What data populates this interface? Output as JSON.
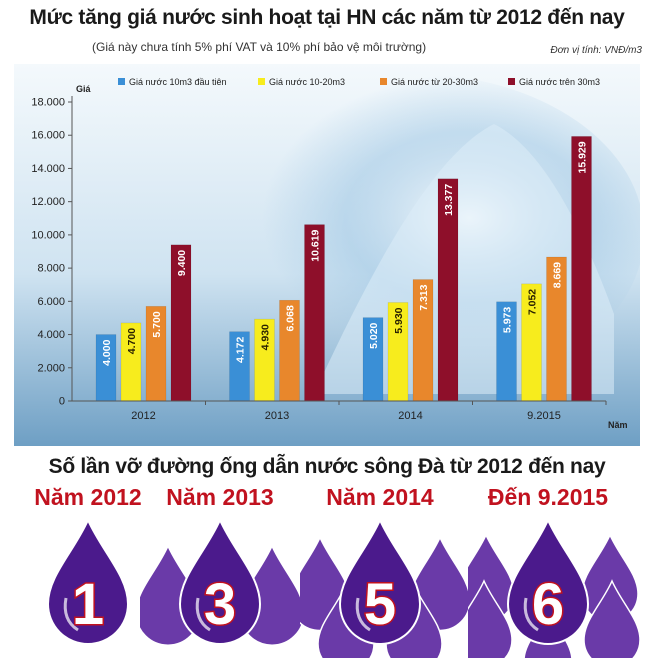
{
  "title": "Mức tăng giá nước sinh hoạt tại HN các năm từ 2012 đến nay",
  "subtitle": "(Giá này chưa tính 5% phí VAT và 10% phí bảo vệ môi trường)",
  "unit_note": "Đơn vị tính: VNĐ/m3",
  "chart_data": {
    "type": "bar",
    "ylabel": "Giá",
    "xlabel": "Năm",
    "ylim": [
      0,
      18000
    ],
    "yticks": [
      "0",
      "2.000",
      "4.000",
      "6.000",
      "8.000",
      "10.000",
      "12.000",
      "14.000",
      "16.000",
      "18.000"
    ],
    "categories": [
      "2012",
      "2013",
      "2014",
      "9.2015"
    ],
    "legend_position": "top",
    "series": [
      {
        "name": "Giá nước 10m3 đầu tiên",
        "color": "#3a8fd6",
        "values": [
          4000,
          4172,
          5020,
          5973
        ],
        "labels": [
          "4.000",
          "4.172",
          "5.020",
          "5.973"
        ]
      },
      {
        "name": "Giá nước 10-20m3",
        "color": "#f7ec1d",
        "values": [
          4700,
          4930,
          5930,
          7052
        ],
        "labels": [
          "4.700",
          "4.930",
          "5.930",
          "7.052"
        ]
      },
      {
        "name": "Giá nước từ 20-30m3",
        "color": "#e8872c",
        "values": [
          5700,
          6068,
          7313,
          8669
        ],
        "labels": [
          "5.700",
          "6.068",
          "7.313",
          "8.669"
        ]
      },
      {
        "name": "Giá nước trên 30m3",
        "color": "#8e0f2a",
        "values": [
          9400,
          10619,
          13377,
          15929
        ],
        "labels": [
          "9.400",
          "10.619",
          "13.377",
          "15.929"
        ]
      }
    ]
  },
  "breaks_title": "Số lần vỡ đường ống dẫn nước sông Đà từ 2012 đến nay",
  "breaks": [
    {
      "label": "Năm 2012",
      "count": "1"
    },
    {
      "label": "Năm 2013",
      "count": "3"
    },
    {
      "label": "Năm 2014",
      "count": "5"
    },
    {
      "label": "Đến 9.2015",
      "count": "6"
    }
  ],
  "colors": {
    "drop": "#4b1a8c",
    "drop_light": "#6a3aa8",
    "accent_red": "#c1121f"
  }
}
